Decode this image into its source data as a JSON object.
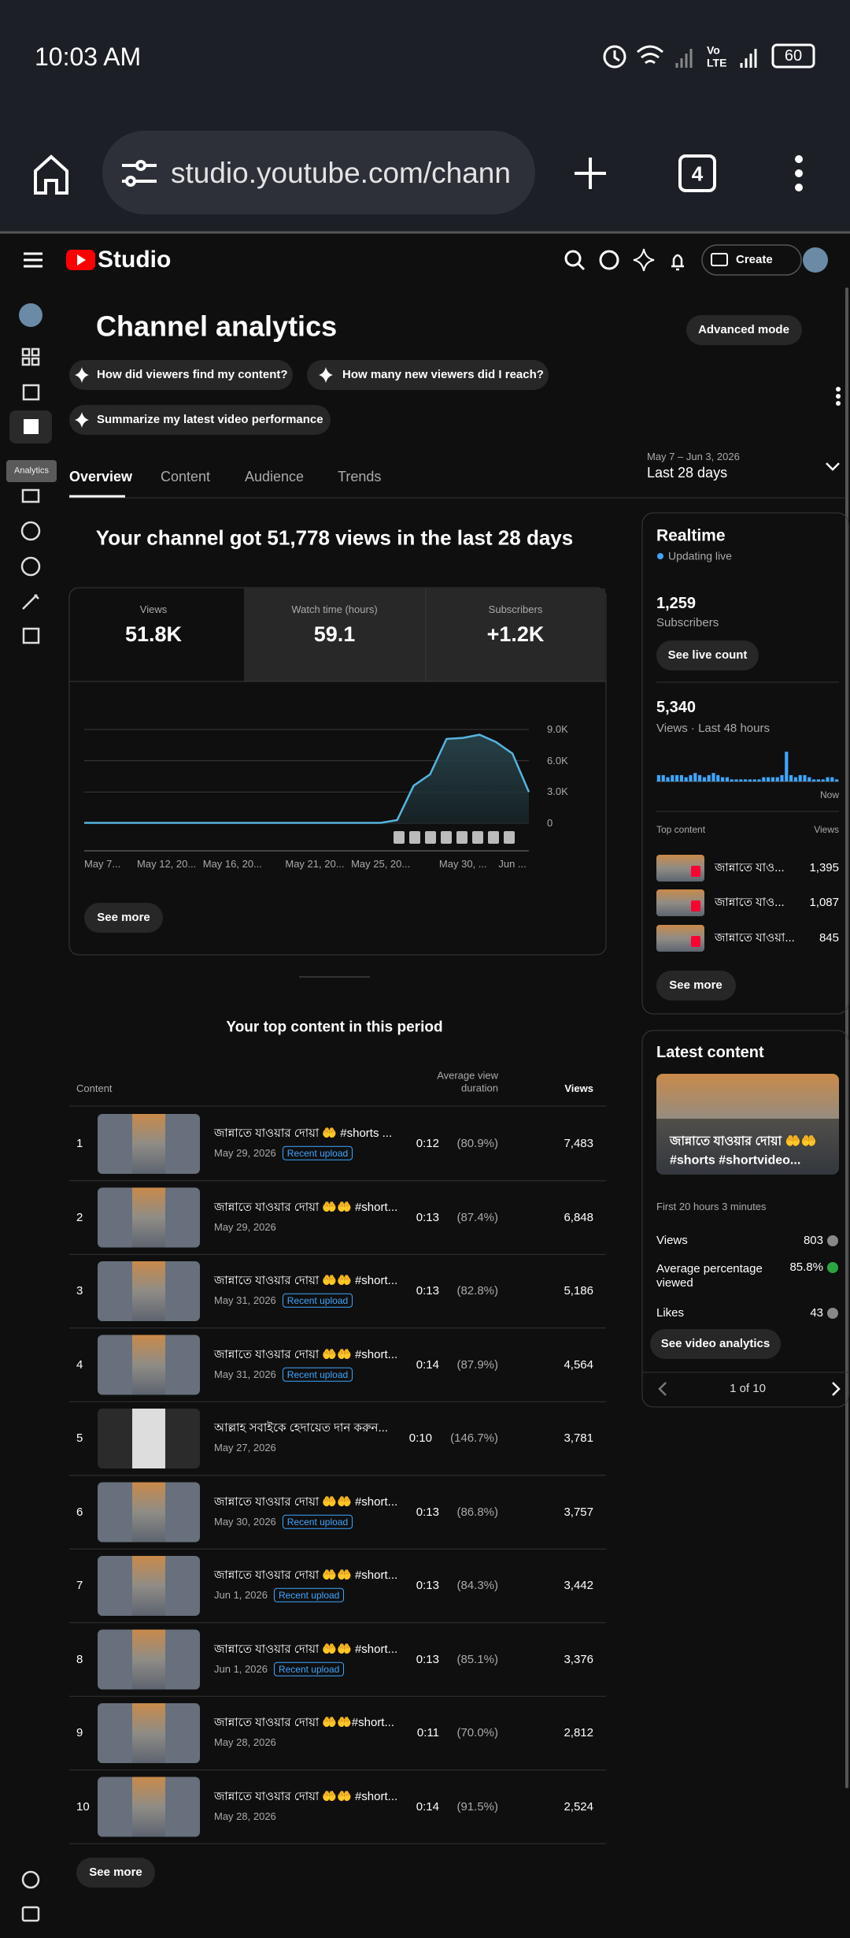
{
  "status_bar": {
    "time": "10:03 AM",
    "vo": "Vo",
    "lte": "LTE",
    "battery": "60"
  },
  "browser": {
    "url": "studio.youtube.com/chann",
    "tab_count": "4"
  },
  "header": {
    "logo": "Studio",
    "create": "Create"
  },
  "sidebar": {
    "tooltip": "Analytics"
  },
  "page": {
    "title": "Channel analytics",
    "advanced_mode": "Advanced mode",
    "chips": [
      "How did viewers find my content?",
      "How many new viewers did I reach?",
      "Summarize my latest video performance"
    ],
    "date_range": "May 7 – Jun 3, 2026",
    "period": "Last 28 days",
    "tabs": [
      "Overview",
      "Content",
      "Audience",
      "Trends"
    ]
  },
  "summary": {
    "headline": "Your channel got 51,778 views in the last 28 days",
    "metrics": [
      {
        "label": "Views",
        "value": "51.8K"
      },
      {
        "label": "Watch time (hours)",
        "value": "59.1"
      },
      {
        "label": "Subscribers",
        "value": "+1.2K"
      }
    ],
    "see_more": "See more"
  },
  "chart_data": {
    "type": "line",
    "categories": [
      "May 7...",
      null,
      null,
      null,
      null,
      "May 12, 20...",
      null,
      null,
      null,
      "May 16, 20...",
      null,
      null,
      null,
      null,
      "May 21, 20...",
      null,
      null,
      null,
      "May 25, 20...",
      null,
      null,
      null,
      null,
      "May 30, ...",
      null,
      null,
      "Jun ...",
      null
    ],
    "values": [
      40,
      40,
      40,
      40,
      40,
      40,
      40,
      40,
      40,
      40,
      40,
      40,
      40,
      40,
      40,
      40,
      40,
      40,
      40,
      300,
      3600,
      4700,
      8100,
      8200,
      8500,
      7800,
      6700,
      3000
    ],
    "color": "#56b4e0",
    "ylim": [
      0,
      9000
    ],
    "yticks": [
      {
        "value": 9000,
        "label": "9.0K"
      },
      {
        "value": 6000,
        "label": "6.0K"
      },
      {
        "value": 3000,
        "label": "3.0K"
      },
      0
    ],
    "grid": true
  },
  "top_content": {
    "title": "Your top content in this period",
    "columns": [
      "Content",
      "Average view duration",
      "Views"
    ],
    "rows": [
      {
        "rank": "1",
        "title": "জান্নাতে যাওয়ার দোয়া 🤲 #shorts ...",
        "date": "May 29, 2026",
        "badge": "Recent upload",
        "duration": "0:12",
        "percent": "(80.9%)",
        "views": "7,483"
      },
      {
        "rank": "2",
        "title": "জান্নাতে যাওয়ার দোয়া 🤲🤲 #short...",
        "date": "May 29, 2026",
        "duration": "0:13",
        "percent": "(87.4%)",
        "views": "6,848"
      },
      {
        "rank": "3",
        "title": "জান্নাতে যাওয়ার দোয়া 🤲🤲 #short...",
        "date": "May 31, 2026",
        "badge": "Recent upload",
        "duration": "0:13",
        "percent": "(82.8%)",
        "views": "5,186"
      },
      {
        "rank": "4",
        "title": "জান্নাতে যাওয়ার দোয়া 🤲🤲 #short...",
        "date": "May 31, 2026",
        "badge": "Recent upload",
        "duration": "0:14",
        "percent": "(87.9%)",
        "views": "4,564"
      },
      {
        "rank": "5",
        "title": "আল্লাহ সবাইকে হেদায়েত দান করুন...",
        "date": "May 27, 2026",
        "duration": "0:10",
        "percent": "(146.7%)",
        "views": "3,781"
      },
      {
        "rank": "6",
        "title": "জান্নাতে যাওয়ার দোয়া 🤲🤲 #short...",
        "date": "May 30, 2026",
        "badge": "Recent upload",
        "duration": "0:13",
        "percent": "(86.8%)",
        "views": "3,757"
      },
      {
        "rank": "7",
        "title": "জান্নাতে যাওয়ার দোয়া 🤲🤲 #short...",
        "date": "Jun 1, 2026",
        "badge": "Recent upload",
        "duration": "0:13",
        "percent": "(84.3%)",
        "views": "3,442"
      },
      {
        "rank": "8",
        "title": "জান্নাতে যাওয়ার দোয়া 🤲🤲 #short...",
        "date": "Jun 1, 2026",
        "badge": "Recent upload",
        "duration": "0:13",
        "percent": "(85.1%)",
        "views": "3,376"
      },
      {
        "rank": "9",
        "title": "জান্নাতে যাওয়ার দোয়া 🤲🤲#short...",
        "date": "May 28, 2026",
        "duration": "0:11",
        "percent": "(70.0%)",
        "views": "2,812"
      },
      {
        "rank": "10",
        "title": "জান্নাতে যাওয়ার দোয়া 🤲🤲 #short...",
        "date": "May 28, 2026",
        "duration": "0:14",
        "percent": "(91.5%)",
        "views": "2,524"
      }
    ],
    "see_more": "See more"
  },
  "realtime": {
    "title": "Realtime",
    "status": "Updating live",
    "subscribers": "1,259",
    "subscribers_label": "Subscribers",
    "live_count": "See live count",
    "views": "5,340",
    "views_label": "Views · Last 48 hours",
    "bars": [
      3,
      3,
      2,
      3,
      3,
      3,
      2,
      3,
      4,
      3,
      2,
      3,
      4,
      3,
      2,
      2,
      1,
      1,
      1,
      1,
      1,
      1,
      1,
      2,
      2,
      2,
      2,
      3,
      14,
      3,
      2,
      3,
      3,
      2,
      1,
      1,
      1,
      2,
      2,
      1
    ],
    "now": "Now",
    "top_content": "Top content",
    "views_header": "Views",
    "items": [
      {
        "title": "জান্নাতে যাও...",
        "views": "1,395"
      },
      {
        "title": "জান্নাতে যাও...",
        "views": "1,087"
      },
      {
        "title": "জান্নাতে যাওয়া...",
        "views": "845"
      }
    ],
    "see_more": "See more"
  },
  "latest": {
    "title": "Latest content",
    "video_title": [
      "জান্নাতে যাওয়ার দোয়া 🤲🤲",
      "#shorts #shortvideo..."
    ],
    "age": "First 20 hours 3 minutes",
    "stats": [
      {
        "label": "Views",
        "value": "803"
      },
      {
        "label": "Average percentage viewed",
        "value": "85.8%"
      },
      {
        "label": "Likes",
        "value": "43"
      }
    ],
    "button": "See video analytics",
    "pager": "1 of 10"
  }
}
